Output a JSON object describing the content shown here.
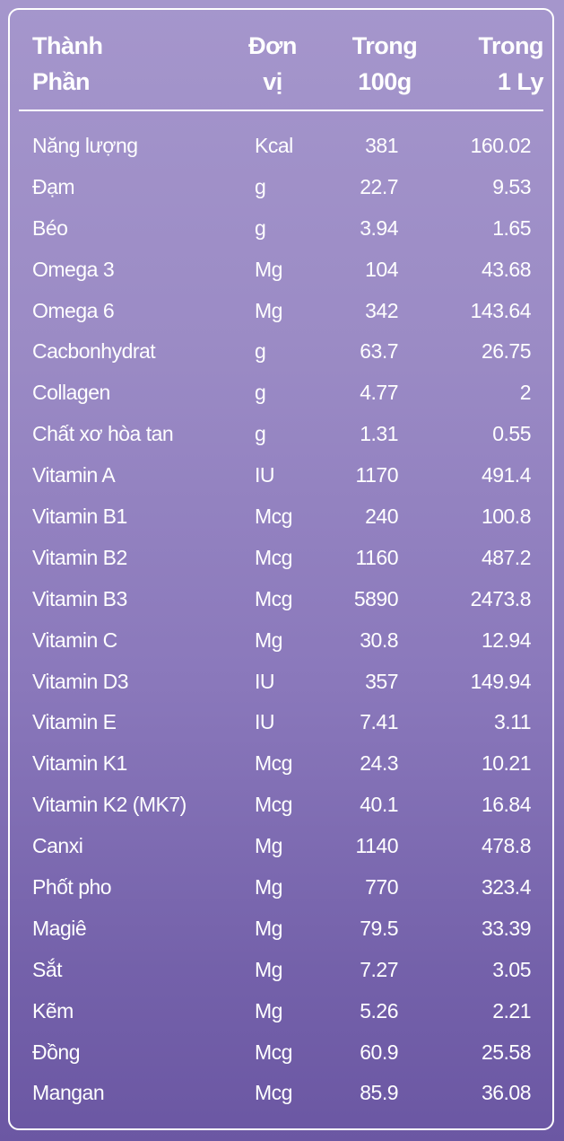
{
  "headers": {
    "name": "Thành\nPhần",
    "unit": "Đơn\nvị",
    "per100g": "Trong\n100g",
    "perCup": "Trong\n1 Ly"
  },
  "rows": [
    {
      "name": "Năng lượng",
      "unit": "Kcal",
      "per100g": "381",
      "perCup": "160.02"
    },
    {
      "name": "Đạm",
      "unit": "g",
      "per100g": "22.7",
      "perCup": "9.53"
    },
    {
      "name": "Béo",
      "unit": "g",
      "per100g": "3.94",
      "perCup": "1.65"
    },
    {
      "name": "Omega 3",
      "unit": "Mg",
      "per100g": "104",
      "perCup": "43.68"
    },
    {
      "name": "Omega 6",
      "unit": "Mg",
      "per100g": "342",
      "perCup": "143.64"
    },
    {
      "name": "Cacbonhydrat",
      "unit": "g",
      "per100g": "63.7",
      "perCup": "26.75"
    },
    {
      "name": "Collagen",
      "unit": "g",
      "per100g": "4.77",
      "perCup": "2"
    },
    {
      "name": "Chất xơ hòa tan",
      "unit": "g",
      "per100g": "1.31",
      "perCup": "0.55"
    },
    {
      "name": "Vitamin A",
      "unit": "IU",
      "per100g": "1170",
      "perCup": "491.4"
    },
    {
      "name": "Vitamin B1",
      "unit": "Mcg",
      "per100g": "240",
      "perCup": "100.8"
    },
    {
      "name": "Vitamin B2",
      "unit": "Mcg",
      "per100g": "1160",
      "perCup": "487.2"
    },
    {
      "name": "Vitamin B3",
      "unit": "Mcg",
      "per100g": "5890",
      "perCup": "2473.8"
    },
    {
      "name": "Vitamin C",
      "unit": "Mg",
      "per100g": "30.8",
      "perCup": "12.94"
    },
    {
      "name": "Vitamin D3",
      "unit": "IU",
      "per100g": "357",
      "perCup": "149.94"
    },
    {
      "name": "Vitamin E",
      "unit": "IU",
      "per100g": "7.41",
      "perCup": "3.11"
    },
    {
      "name": "Vitamin K1",
      "unit": "Mcg",
      "per100g": "24.3",
      "perCup": "10.21"
    },
    {
      "name": "Vitamin K2 (MK7)",
      "unit": "Mcg",
      "per100g": "40.1",
      "perCup": "16.84"
    },
    {
      "name": "Canxi",
      "unit": "Mg",
      "per100g": "1140",
      "perCup": "478.8"
    },
    {
      "name": "Phốt pho",
      "unit": "Mg",
      "per100g": "770",
      "perCup": "323.4"
    },
    {
      "name": "Magiê",
      "unit": "Mg",
      "per100g": "79.5",
      "perCup": "33.39"
    },
    {
      "name": "Sắt",
      "unit": "Mg",
      "per100g": "7.27",
      "perCup": "3.05"
    },
    {
      "name": "Kẽm",
      "unit": "Mg",
      "per100g": "5.26",
      "perCup": "2.21"
    },
    {
      "name": "Đồng",
      "unit": "Mcg",
      "per100g": "60.9",
      "perCup": "25.58"
    },
    {
      "name": "Mangan",
      "unit": "Mcg",
      "per100g": "85.9",
      "perCup": "36.08"
    }
  ]
}
